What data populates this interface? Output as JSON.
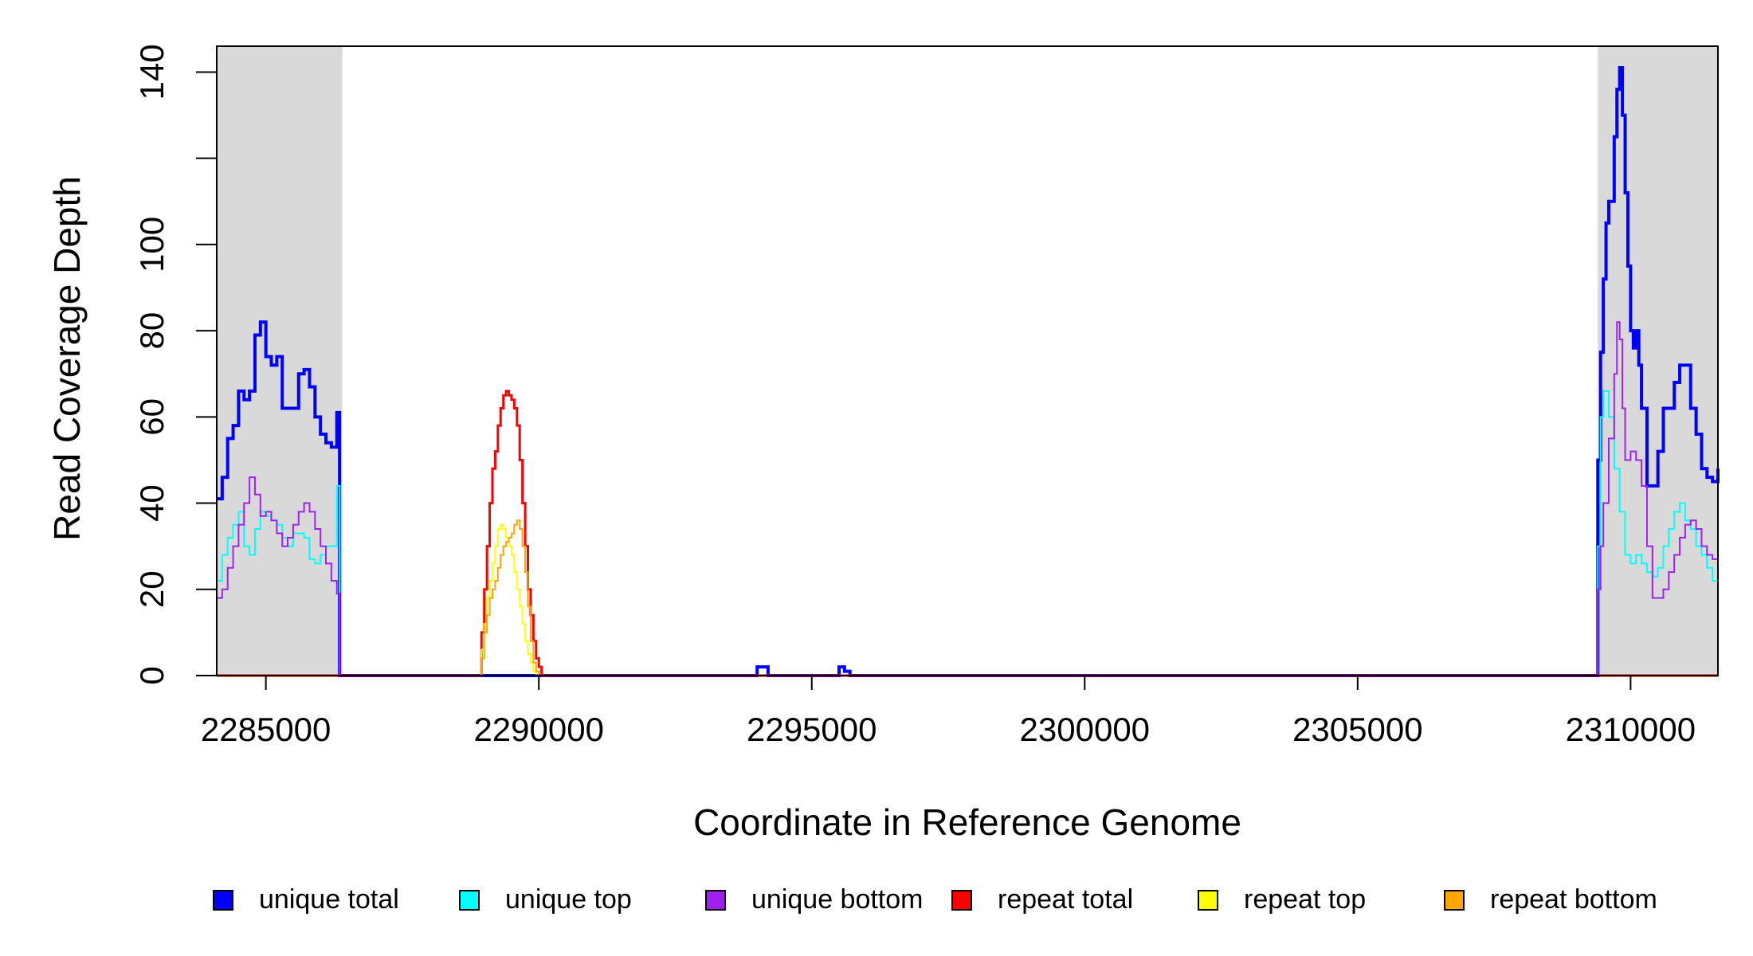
{
  "chart_data": {
    "type": "line",
    "title": "",
    "xlabel": "Coordinate in Reference Genome",
    "ylabel": "Read Coverage Depth",
    "xlim": [
      2284100,
      2311600
    ],
    "ylim": [
      0,
      146
    ],
    "x_ticks": [
      2285000,
      2290000,
      2295000,
      2300000,
      2305000,
      2310000
    ],
    "x_tick_labels": [
      "2285000",
      "2290000",
      "2295000",
      "2300000",
      "2305000",
      "2310000"
    ],
    "y_ticks": [
      0,
      20,
      40,
      60,
      80,
      100,
      120,
      140
    ],
    "y_tick_labels": [
      "0",
      "20",
      "40",
      "60",
      "80",
      "100",
      "",
      "140"
    ],
    "shaded_regions": [
      {
        "x0": 2284100,
        "x1": 2286400
      },
      {
        "x0": 2309400,
        "x1": 2311600
      }
    ],
    "shade_color": "#d9d9d9",
    "grid": false,
    "legend_position": "bottom",
    "series": [
      {
        "name": "unique total",
        "color": "#0000ff",
        "width": 4,
        "x": [
          2284100,
          2284200,
          2284300,
          2284400,
          2284500,
          2284600,
          2284700,
          2284800,
          2284900,
          2285000,
          2285100,
          2285200,
          2285300,
          2285400,
          2285500,
          2285600,
          2285700,
          2285800,
          2285900,
          2286000,
          2286100,
          2286200,
          2286300,
          2286350,
          2286400,
          2286450,
          2287000,
          2289000,
          2290000,
          2293900,
          2294000,
          2294100,
          2294200,
          2295400,
          2295500,
          2295600,
          2295700,
          2296000,
          2300000,
          2305000,
          2309350,
          2309400,
          2309450,
          2309500,
          2309550,
          2309600,
          2309700,
          2309750,
          2309800,
          2309850,
          2309900,
          2309950,
          2310000,
          2310050,
          2310100,
          2310150,
          2310200,
          2310300,
          2310400,
          2310500,
          2310600,
          2310700,
          2310800,
          2310900,
          2311000,
          2311100,
          2311200,
          2311300,
          2311400,
          2311500,
          2311600
        ],
        "y": [
          41,
          46,
          55,
          58,
          66,
          64,
          66,
          79,
          82,
          74,
          72,
          74,
          62,
          62,
          62,
          70,
          71,
          67,
          60,
          56,
          54,
          53,
          61,
          0,
          0,
          0,
          0,
          0,
          0,
          0,
          2,
          2,
          0,
          0,
          2,
          1,
          0,
          0,
          0,
          0,
          0,
          50,
          75,
          92,
          105,
          110,
          125,
          136,
          141,
          130,
          112,
          95,
          80,
          76,
          80,
          72,
          62,
          44,
          44,
          52,
          62,
          62,
          68,
          72,
          72,
          62,
          56,
          48,
          46,
          45,
          48
        ],
        "step": true
      },
      {
        "name": "unique top",
        "color": "#00ffff",
        "width": 2,
        "x": [
          2284100,
          2284200,
          2284300,
          2284400,
          2284500,
          2284600,
          2284700,
          2284800,
          2284900,
          2285000,
          2285100,
          2285200,
          2285300,
          2285400,
          2285500,
          2285600,
          2285700,
          2285800,
          2285900,
          2286000,
          2286100,
          2286200,
          2286300,
          2286350,
          2286400,
          2287000,
          2290000,
          2295000,
          2300000,
          2309350,
          2309400,
          2309450,
          2309500,
          2309600,
          2309700,
          2309800,
          2309900,
          2310000,
          2310100,
          2310200,
          2310300,
          2310400,
          2310500,
          2310600,
          2310700,
          2310800,
          2310900,
          2311000,
          2311100,
          2311200,
          2311300,
          2311400,
          2311500,
          2311600
        ],
        "y": [
          22,
          28,
          32,
          35,
          38,
          30,
          28,
          34,
          38,
          37,
          36,
          35,
          32,
          30,
          33,
          33,
          32,
          27,
          26,
          28,
          30,
          30,
          44,
          0,
          0,
          0,
          0,
          0,
          0,
          0,
          30,
          60,
          66,
          60,
          48,
          38,
          28,
          26,
          28,
          26,
          24,
          23,
          25,
          30,
          34,
          38,
          40,
          36,
          34,
          30,
          28,
          25,
          22,
          20
        ],
        "step": true
      },
      {
        "name": "unique bottom",
        "color": "#a020f0",
        "width": 2,
        "x": [
          2284100,
          2284200,
          2284300,
          2284400,
          2284500,
          2284600,
          2284700,
          2284800,
          2284900,
          2285000,
          2285100,
          2285200,
          2285300,
          2285400,
          2285500,
          2285600,
          2285700,
          2285800,
          2285900,
          2286000,
          2286100,
          2286200,
          2286300,
          2286350,
          2286400,
          2287000,
          2290000,
          2295000,
          2300000,
          2309350,
          2309400,
          2309450,
          2309500,
          2309600,
          2309700,
          2309750,
          2309800,
          2309850,
          2309900,
          2310000,
          2310100,
          2310200,
          2310300,
          2310400,
          2310500,
          2310600,
          2310700,
          2310800,
          2310900,
          2311000,
          2311100,
          2311200,
          2311300,
          2311400,
          2311500,
          2311600
        ],
        "y": [
          18,
          20,
          25,
          30,
          35,
          40,
          46,
          42,
          37,
          38,
          36,
          33,
          30,
          32,
          35,
          38,
          40,
          38,
          34,
          30,
          26,
          22,
          19,
          0,
          0,
          0,
          0,
          0,
          0,
          0,
          20,
          30,
          40,
          55,
          70,
          82,
          78,
          62,
          50,
          52,
          50,
          44,
          30,
          18,
          18,
          20,
          24,
          28,
          32,
          35,
          36,
          34,
          30,
          28,
          27,
          26
        ],
        "step": true
      },
      {
        "name": "repeat total",
        "color": "#ff0000",
        "width": 3,
        "x": [
          2284100,
          2288900,
          2288950,
          2289000,
          2289050,
          2289100,
          2289150,
          2289200,
          2289250,
          2289300,
          2289350,
          2289400,
          2289450,
          2289500,
          2289550,
          2289600,
          2289650,
          2289700,
          2289750,
          2289800,
          2289850,
          2289900,
          2289950,
          2290000,
          2290050,
          2290100,
          2290150,
          2291000,
          2300000,
          2311600
        ],
        "y": [
          0,
          0,
          10,
          20,
          30,
          40,
          48,
          52,
          58,
          62,
          65,
          66,
          65,
          64,
          62,
          58,
          50,
          40,
          30,
          20,
          14,
          8,
          4,
          2,
          0,
          0,
          0,
          0,
          0,
          0
        ],
        "step": true
      },
      {
        "name": "repeat top",
        "color": "#ffff00",
        "width": 2,
        "x": [
          2284100,
          2288900,
          2288950,
          2289000,
          2289050,
          2289100,
          2289150,
          2289200,
          2289250,
          2289300,
          2289350,
          2289400,
          2289450,
          2289500,
          2289550,
          2289600,
          2289650,
          2289700,
          2289750,
          2289800,
          2289850,
          2289900,
          2289950,
          2290000,
          2290050,
          2290100,
          2290150,
          2291000,
          2300000,
          2311600
        ],
        "y": [
          0,
          0,
          6,
          12,
          18,
          22,
          26,
          30,
          34,
          35,
          34,
          32,
          30,
          28,
          24,
          20,
          16,
          12,
          8,
          5,
          3,
          1,
          0,
          0,
          0,
          0,
          0,
          0,
          0,
          0
        ],
        "step": true
      },
      {
        "name": "repeat bottom",
        "color": "#ffa500",
        "width": 2,
        "x": [
          2284100,
          2288900,
          2288950,
          2289000,
          2289050,
          2289100,
          2289150,
          2289200,
          2289250,
          2289300,
          2289350,
          2289400,
          2289450,
          2289500,
          2289550,
          2289600,
          2289650,
          2289700,
          2289750,
          2289800,
          2289850,
          2289900,
          2289950,
          2290000,
          2290050,
          2290100,
          2290150,
          2291000,
          2300000,
          2311600
        ],
        "y": [
          0,
          0,
          4,
          10,
          14,
          18,
          20,
          22,
          25,
          28,
          30,
          31,
          32,
          33,
          35,
          36,
          34,
          30,
          24,
          16,
          8,
          3,
          1,
          0,
          0,
          0,
          0,
          0,
          0,
          0
        ],
        "step": true
      }
    ]
  }
}
